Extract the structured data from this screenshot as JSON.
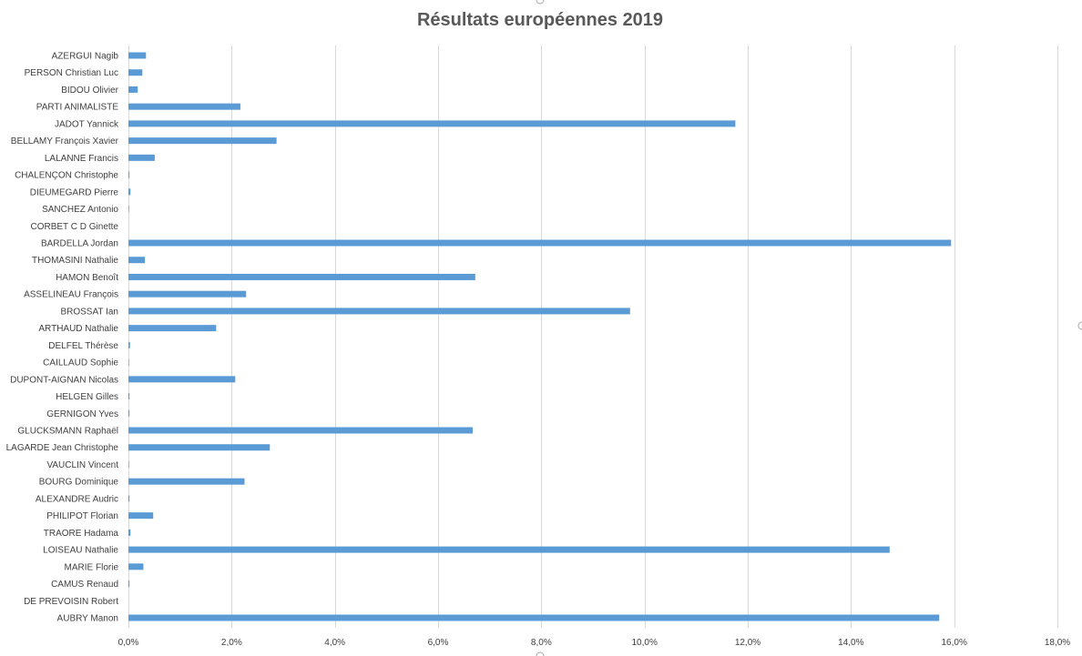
{
  "chart_data": {
    "type": "bar",
    "orientation": "horizontal",
    "title": "Résultats européennes 2019",
    "xlabel": "",
    "ylabel": "",
    "xlim": [
      0,
      18
    ],
    "x_ticks": [
      "0,0%",
      "2,0%",
      "4,0%",
      "6,0%",
      "8,0%",
      "10,0%",
      "12,0%",
      "14,0%",
      "16,0%",
      "18,0%"
    ],
    "x_tick_values": [
      0,
      2,
      4,
      6,
      8,
      10,
      12,
      14,
      16,
      18
    ],
    "grid": "vertical",
    "legend": "none",
    "bar_color": "#5b9bd5",
    "categories": [
      "AZERGUI Nagib",
      "PERSON Christian Luc",
      "BIDOU Olivier",
      "PARTI ANIMALISTE",
      "JADOT Yannick",
      "BELLAMY François Xavier",
      "LALANNE Francis",
      "CHALENÇON Christophe",
      "DIEUMEGARD Pierre",
      "SANCHEZ Antonio",
      "CORBET C D Ginette",
      "BARDELLA Jordan",
      "THOMASINI Nathalie",
      "HAMON Benoît",
      "ASSELINEAU François",
      "BROSSAT Ian",
      "ARTHAUD Nathalie",
      "DELFEL Thérèse",
      "CAILLAUD Sophie",
      "DUPONT-AIGNAN Nicolas",
      "HELGEN Gilles",
      "GERNIGON Yves",
      "GLUCKSMANN Raphaël",
      "LAGARDE Jean Christophe",
      "VAUCLIN Vincent",
      "BOURG Dominique",
      "ALEXANDRE Audric",
      "PHILIPOT Florian",
      "TRAORE Hadama",
      "LOISEAU Nathalie",
      "MARIE Florie",
      "CAMUS Renaud",
      "DE PREVOISIN Robert",
      "AUBRY Manon"
    ],
    "values": [
      0.34,
      0.27,
      0.18,
      2.17,
      11.76,
      2.87,
      0.51,
      0.02,
      0.04,
      0.01,
      0.0,
      15.94,
      0.32,
      6.72,
      2.28,
      9.72,
      1.7,
      0.03,
      0.01,
      2.07,
      0.02,
      0.02,
      6.67,
      2.74,
      0.01,
      2.25,
      0.02,
      0.48,
      0.04,
      14.75,
      0.29,
      0.02,
      0.0,
      15.71
    ]
  }
}
